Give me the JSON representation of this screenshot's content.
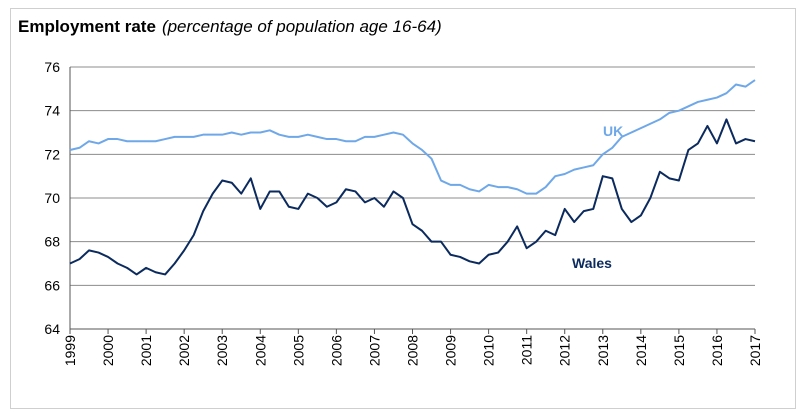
{
  "chart_data": {
    "type": "line",
    "title": "Employment rate",
    "subtitle": "(percentage of population age 16-64)",
    "x": [
      1999,
      1999.25,
      1999.5,
      1999.75,
      2000,
      2000.25,
      2000.5,
      2000.75,
      2001,
      2001.25,
      2001.5,
      2001.75,
      2002,
      2002.25,
      2002.5,
      2002.75,
      2003,
      2003.25,
      2003.5,
      2003.75,
      2004,
      2004.25,
      2004.5,
      2004.75,
      2005,
      2005.25,
      2005.5,
      2005.75,
      2006,
      2006.25,
      2006.5,
      2006.75,
      2007,
      2007.25,
      2007.5,
      2007.75,
      2008,
      2008.25,
      2008.5,
      2008.75,
      2009,
      2009.25,
      2009.5,
      2009.75,
      2010,
      2010.25,
      2010.5,
      2010.75,
      2011,
      2011.25,
      2011.5,
      2011.75,
      2012,
      2012.25,
      2012.5,
      2012.75,
      2013,
      2013.25,
      2013.5,
      2013.75,
      2014,
      2014.25,
      2014.5,
      2014.75,
      2015,
      2015.25,
      2015.5,
      2015.75,
      2016,
      2016.25,
      2016.5,
      2016.75,
      2017
    ],
    "series": [
      {
        "name": "UK",
        "color": "#6fa8e8",
        "values": [
          72.2,
          72.3,
          72.6,
          72.5,
          72.7,
          72.7,
          72.6,
          72.6,
          72.6,
          72.6,
          72.7,
          72.8,
          72.8,
          72.8,
          72.9,
          72.9,
          72.9,
          73.0,
          72.9,
          73.0,
          73.0,
          73.1,
          72.9,
          72.8,
          72.8,
          72.9,
          72.8,
          72.7,
          72.7,
          72.6,
          72.6,
          72.8,
          72.8,
          72.9,
          73.0,
          72.9,
          72.5,
          72.2,
          71.8,
          70.8,
          70.6,
          70.6,
          70.4,
          70.3,
          70.6,
          70.5,
          70.5,
          70.4,
          70.2,
          70.2,
          70.5,
          71.0,
          71.1,
          71.3,
          71.4,
          71.5,
          72.0,
          72.3,
          72.8,
          73.0,
          73.2,
          73.4,
          73.6,
          73.9,
          74.0,
          74.2,
          74.4,
          74.5,
          74.6,
          74.8,
          75.2,
          75.1,
          75.4
        ]
      },
      {
        "name": "Wales",
        "color": "#0b2a5e",
        "values": [
          67.0,
          67.2,
          67.6,
          67.5,
          67.3,
          67.0,
          66.8,
          66.5,
          66.8,
          66.6,
          66.5,
          67.0,
          67.6,
          68.3,
          69.4,
          70.2,
          70.8,
          70.7,
          70.2,
          70.9,
          69.5,
          70.3,
          70.3,
          69.6,
          69.5,
          70.2,
          70.0,
          69.6,
          69.8,
          70.4,
          70.3,
          69.8,
          70.0,
          69.6,
          70.3,
          70.0,
          68.8,
          68.5,
          68.0,
          68.0,
          67.4,
          67.3,
          67.1,
          67.0,
          67.4,
          67.5,
          68.0,
          68.7,
          67.7,
          68.0,
          68.5,
          68.3,
          69.5,
          68.9,
          69.4,
          69.5,
          71.0,
          70.9,
          69.5,
          68.9,
          69.2,
          70.0,
          71.2,
          70.9,
          70.8,
          72.2,
          72.5,
          73.3,
          72.5,
          73.6,
          72.5,
          72.7,
          72.6
        ]
      }
    ],
    "xlim": [
      1999,
      2017
    ],
    "xticks": [
      1999,
      2000,
      2001,
      2002,
      2003,
      2004,
      2005,
      2006,
      2007,
      2008,
      2009,
      2010,
      2011,
      2012,
      2013,
      2014,
      2015,
      2016,
      2017
    ],
    "ylim": [
      64,
      76
    ],
    "yticks": [
      64,
      66,
      68,
      70,
      72,
      74,
      76
    ],
    "grid": true
  }
}
